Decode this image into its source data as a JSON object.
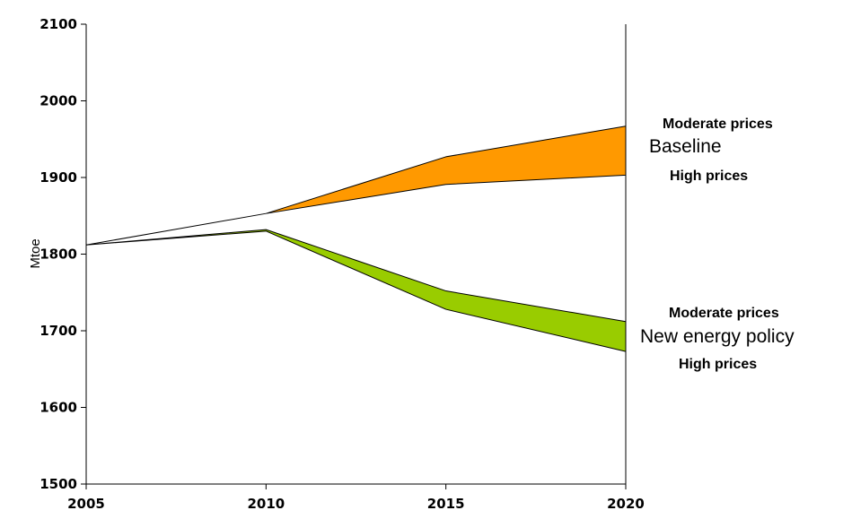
{
  "chart_data": {
    "type": "area",
    "title": "",
    "xlabel": "",
    "ylabel": "Mtoe",
    "xlim": [
      2005,
      2020
    ],
    "ylim": [
      1500,
      2100
    ],
    "x_ticks": [
      "2005",
      "2010",
      "2015",
      "2020"
    ],
    "y_ticks": [
      "1500",
      "1600",
      "1700",
      "1800",
      "1900",
      "2000",
      "2100"
    ],
    "grid": false,
    "legend": "none",
    "x": [
      2005,
      2010,
      2015,
      2020
    ],
    "series": [
      {
        "name": "Baseline",
        "color": "#ff9900",
        "upper": [
          1812,
          1853,
          1927,
          1967
        ],
        "lower": [
          1812,
          1853,
          1891,
          1903
        ],
        "upper_label": "Moderate prices",
        "lower_label": "High prices"
      },
      {
        "name": "New energy policy",
        "color": "#99cc00",
        "upper": [
          1812,
          1832,
          1752,
          1712
        ],
        "lower": [
          1812,
          1830,
          1728,
          1673
        ],
        "upper_label": "Moderate prices",
        "lower_label": "High prices"
      }
    ]
  }
}
